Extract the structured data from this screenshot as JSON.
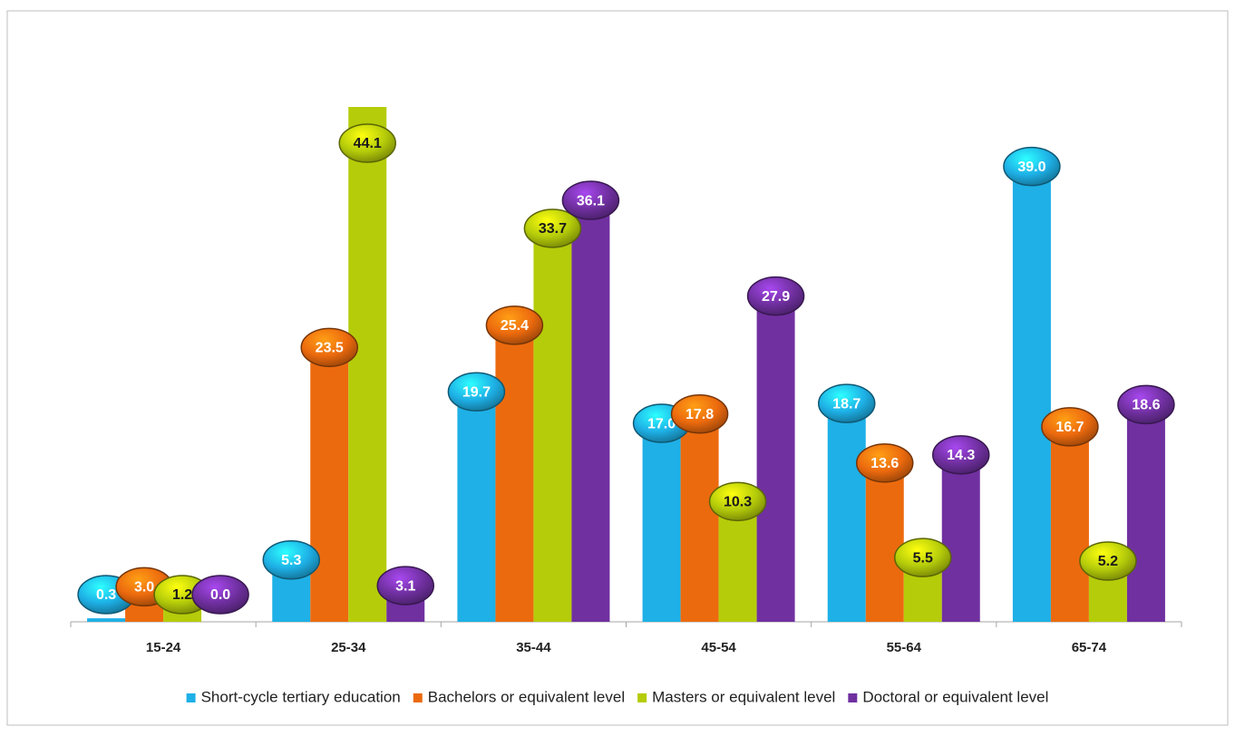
{
  "chart_data": {
    "type": "bar",
    "categories": [
      "15-24",
      "25-34",
      "35-44",
      "45-54",
      "55-64",
      "65-74"
    ],
    "series": [
      {
        "name": "Short-cycle tertiary education",
        "color": "#1eb0e6",
        "values": [
          0.3,
          5.3,
          19.7,
          17.0,
          18.7,
          39.0
        ],
        "value_labels": [
          "0.3",
          "5.3",
          "19.7",
          "17.0",
          "18.7",
          "39.0"
        ]
      },
      {
        "name": "Bachelors or equivalent level",
        "color": "#ec6a0e",
        "values": [
          3.0,
          23.5,
          25.4,
          17.8,
          13.6,
          16.7
        ],
        "value_labels": [
          "3.0",
          "23.5",
          "25.4",
          "17.8",
          "13.6",
          "16.7"
        ]
      },
      {
        "name": "Masters or equivalent level",
        "color": "#b5cc0a",
        "values": [
          1.2,
          44.1,
          33.7,
          10.3,
          5.5,
          5.2
        ],
        "value_labels": [
          "1.2",
          "44.1",
          "33.7",
          "10.3",
          "5.5",
          "5.2"
        ]
      },
      {
        "name": "Doctoral or equivalent level",
        "color": "#7030a0",
        "values": [
          0.0,
          3.1,
          36.1,
          27.9,
          14.3,
          18.6
        ],
        "value_labels": [
          "0.0",
          "3.1",
          "36.1",
          "27.9",
          "14.3",
          "18.6"
        ]
      }
    ],
    "legend": "bottom"
  }
}
